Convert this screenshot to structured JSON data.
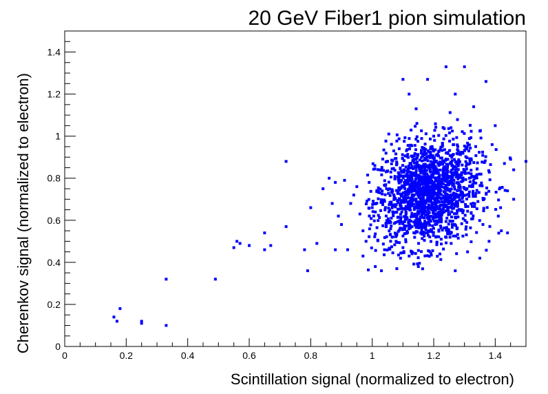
{
  "chart_data": {
    "type": "scatter",
    "title": "20 GeV Fiber1 pion simulation",
    "xlabel": "Scintillation signal (normalized to electron)",
    "ylabel": "Cherenkov signal (normalized to electron)",
    "xlim": [
      0,
      1.5
    ],
    "ylim": [
      0,
      1.5
    ],
    "x_ticks": [
      0,
      0.2,
      0.4,
      0.6,
      0.8,
      1,
      1.2,
      1.4
    ],
    "x_tick_labels": [
      "0",
      "0.2",
      "0.4",
      "0.6",
      "0.8",
      "1",
      "1.2",
      "1.4"
    ],
    "y_ticks": [
      0,
      0.2,
      0.4,
      0.6,
      0.8,
      1,
      1.2,
      1.4
    ],
    "y_tick_labels": [
      "0",
      "0.2",
      "0.4",
      "0.6",
      "0.8",
      "1",
      "1.2",
      "1.4"
    ],
    "grid": false,
    "marker_color": "#0000ff",
    "series": [
      {
        "points": [
          [
            0.16,
            0.14
          ],
          [
            0.17,
            0.12
          ],
          [
            0.18,
            0.18
          ],
          [
            0.25,
            0.11
          ],
          [
            0.25,
            0.12
          ],
          [
            0.33,
            0.1
          ],
          [
            0.33,
            0.32
          ],
          [
            0.49,
            0.32
          ],
          [
            0.55,
            0.47
          ],
          [
            0.56,
            0.5
          ],
          [
            0.57,
            0.49
          ],
          [
            0.6,
            0.48
          ],
          [
            0.65,
            0.54
          ],
          [
            0.65,
            0.46
          ],
          [
            0.67,
            0.48
          ],
          [
            0.72,
            0.88
          ],
          [
            0.72,
            0.57
          ],
          [
            0.78,
            0.46
          ],
          [
            0.79,
            0.36
          ],
          [
            0.8,
            0.66
          ],
          [
            0.82,
            0.49
          ],
          [
            0.84,
            0.75
          ],
          [
            0.86,
            0.8
          ],
          [
            0.87,
            0.68
          ],
          [
            0.88,
            0.78
          ],
          [
            0.88,
            0.46
          ],
          [
            0.89,
            0.62
          ],
          [
            0.9,
            0.58
          ],
          [
            0.91,
            0.79
          ],
          [
            0.92,
            0.46
          ],
          [
            0.93,
            0.68
          ],
          [
            0.94,
            0.72
          ],
          [
            0.95,
            0.76
          ],
          [
            0.96,
            0.63
          ],
          [
            0.97,
            0.55
          ],
          [
            0.97,
            0.43
          ],
          [
            0.98,
            0.5
          ],
          [
            0.99,
            0.78
          ],
          [
            1.0,
            0.66
          ],
          [
            1.01,
            0.38
          ],
          [
            1.02,
            0.74
          ],
          [
            1.03,
            0.36
          ],
          [
            1.04,
            0.46
          ],
          [
            1.05,
            0.88
          ],
          [
            1.06,
            0.56
          ],
          [
            1.07,
            0.93
          ],
          [
            1.08,
            0.37
          ],
          [
            1.1,
            0.47
          ],
          [
            1.1,
            1.27
          ],
          [
            1.12,
            1.2
          ],
          [
            1.12,
            0.43
          ],
          [
            1.15,
            0.38
          ],
          [
            1.18,
            1.27
          ],
          [
            1.2,
            1.0
          ],
          [
            1.22,
            0.44
          ],
          [
            1.24,
            1.33
          ],
          [
            1.27,
            0.36
          ],
          [
            1.27,
            1.2
          ],
          [
            1.3,
            1.33
          ],
          [
            1.31,
            0.45
          ],
          [
            1.33,
            1.14
          ],
          [
            1.35,
            0.42
          ],
          [
            1.37,
            1.26
          ],
          [
            1.4,
            1.05
          ],
          [
            1.42,
            0.55
          ],
          [
            1.43,
            0.87
          ],
          [
            1.44,
            0.54
          ],
          [
            1.45,
            0.89
          ],
          [
            1.46,
            0.84
          ],
          [
            1.5,
            0.88
          ],
          [
            1.46,
            0.7
          ],
          [
            1.44,
            0.74
          ],
          [
            1.38,
            0.5
          ],
          [
            1.41,
            0.62
          ],
          [
            1.39,
            0.96
          ],
          [
            1.36,
            0.58
          ]
        ]
      }
    ],
    "cluster": {
      "x_center": 1.18,
      "y_center": 0.73,
      "x_sd": 0.085,
      "y_sd": 0.125,
      "count": 1650
    }
  }
}
